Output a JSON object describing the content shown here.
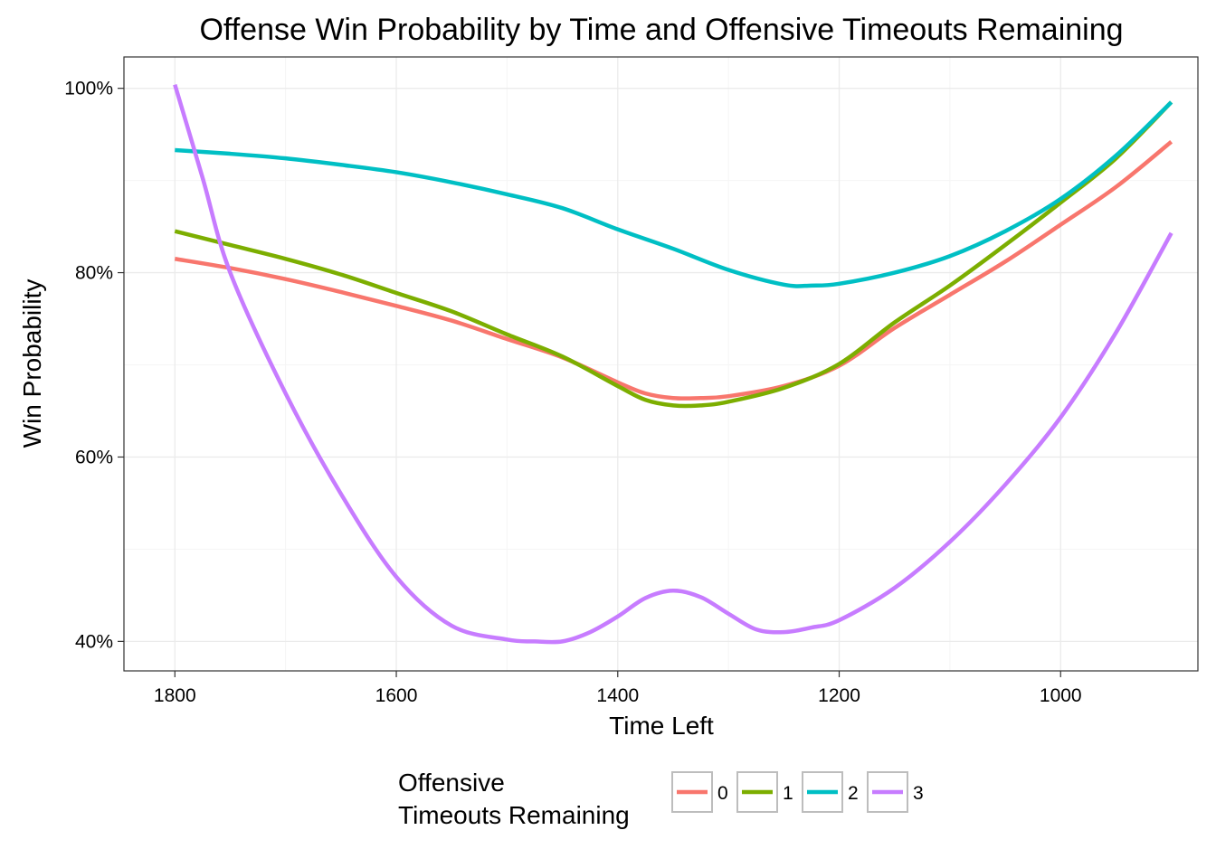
{
  "chart_data": {
    "type": "line",
    "title": "Offense Win Probability by Time and Offensive Timeouts Remaining",
    "xlabel": "Time Left",
    "ylabel": "Win Probability",
    "xlim": [
      1846,
      876
    ],
    "ylim": [
      0.368,
      1.034
    ],
    "x_reversed": true,
    "x_ticks": [
      1800,
      1600,
      1400,
      1200,
      1000
    ],
    "x_tick_labels": [
      "1800",
      "1600",
      "1400",
      "1200",
      "1000"
    ],
    "y_ticks": [
      0.4,
      0.6,
      0.8,
      1.0
    ],
    "y_tick_labels": [
      "40%",
      "60%",
      "80%",
      "100%"
    ],
    "grid": true,
    "legend": {
      "title_lines": [
        "Offensive",
        "Timeouts Remaining"
      ],
      "position": "bottom"
    },
    "series": [
      {
        "name": "0",
        "color": "#F8766D",
        "x": [
          1800,
          1750,
          1700,
          1650,
          1600,
          1550,
          1500,
          1450,
          1400,
          1375,
          1350,
          1325,
          1300,
          1250,
          1200,
          1150,
          1100,
          1050,
          1000,
          950,
          900
        ],
        "y": [
          0.815,
          0.805,
          0.793,
          0.779,
          0.764,
          0.748,
          0.728,
          0.708,
          0.681,
          0.669,
          0.664,
          0.664,
          0.666,
          0.677,
          0.699,
          0.74,
          0.776,
          0.812,
          0.852,
          0.893,
          0.942
        ]
      },
      {
        "name": "1",
        "color": "#7CAE00",
        "x": [
          1800,
          1750,
          1700,
          1650,
          1600,
          1550,
          1500,
          1450,
          1400,
          1375,
          1350,
          1325,
          1300,
          1250,
          1200,
          1150,
          1100,
          1050,
          1000,
          950,
          900
        ],
        "y": [
          0.845,
          0.83,
          0.815,
          0.798,
          0.778,
          0.758,
          0.733,
          0.709,
          0.677,
          0.662,
          0.656,
          0.656,
          0.66,
          0.675,
          0.701,
          0.746,
          0.786,
          0.83,
          0.876,
          0.924,
          0.985
        ]
      },
      {
        "name": "2",
        "color": "#00BFC4",
        "x": [
          1800,
          1750,
          1700,
          1650,
          1600,
          1550,
          1500,
          1450,
          1400,
          1350,
          1300,
          1250,
          1225,
          1200,
          1150,
          1100,
          1050,
          1000,
          950,
          900
        ],
        "y": [
          0.933,
          0.929,
          0.924,
          0.917,
          0.909,
          0.898,
          0.885,
          0.87,
          0.847,
          0.826,
          0.803,
          0.787,
          0.786,
          0.788,
          0.8,
          0.818,
          0.845,
          0.88,
          0.927,
          0.985
        ]
      },
      {
        "name": "3",
        "color": "#C77CFF",
        "x": [
          1800,
          1775,
          1750,
          1700,
          1650,
          1600,
          1550,
          1500,
          1475,
          1450,
          1425,
          1400,
          1375,
          1350,
          1325,
          1300,
          1275,
          1250,
          1225,
          1200,
          1150,
          1100,
          1050,
          1000,
          950,
          900
        ],
        "y": [
          1.004,
          0.903,
          0.8,
          0.669,
          0.56,
          0.47,
          0.417,
          0.402,
          0.4,
          0.4,
          0.41,
          0.427,
          0.447,
          0.455,
          0.448,
          0.43,
          0.413,
          0.41,
          0.415,
          0.423,
          0.458,
          0.508,
          0.57,
          0.643,
          0.735,
          0.843
        ]
      }
    ]
  }
}
